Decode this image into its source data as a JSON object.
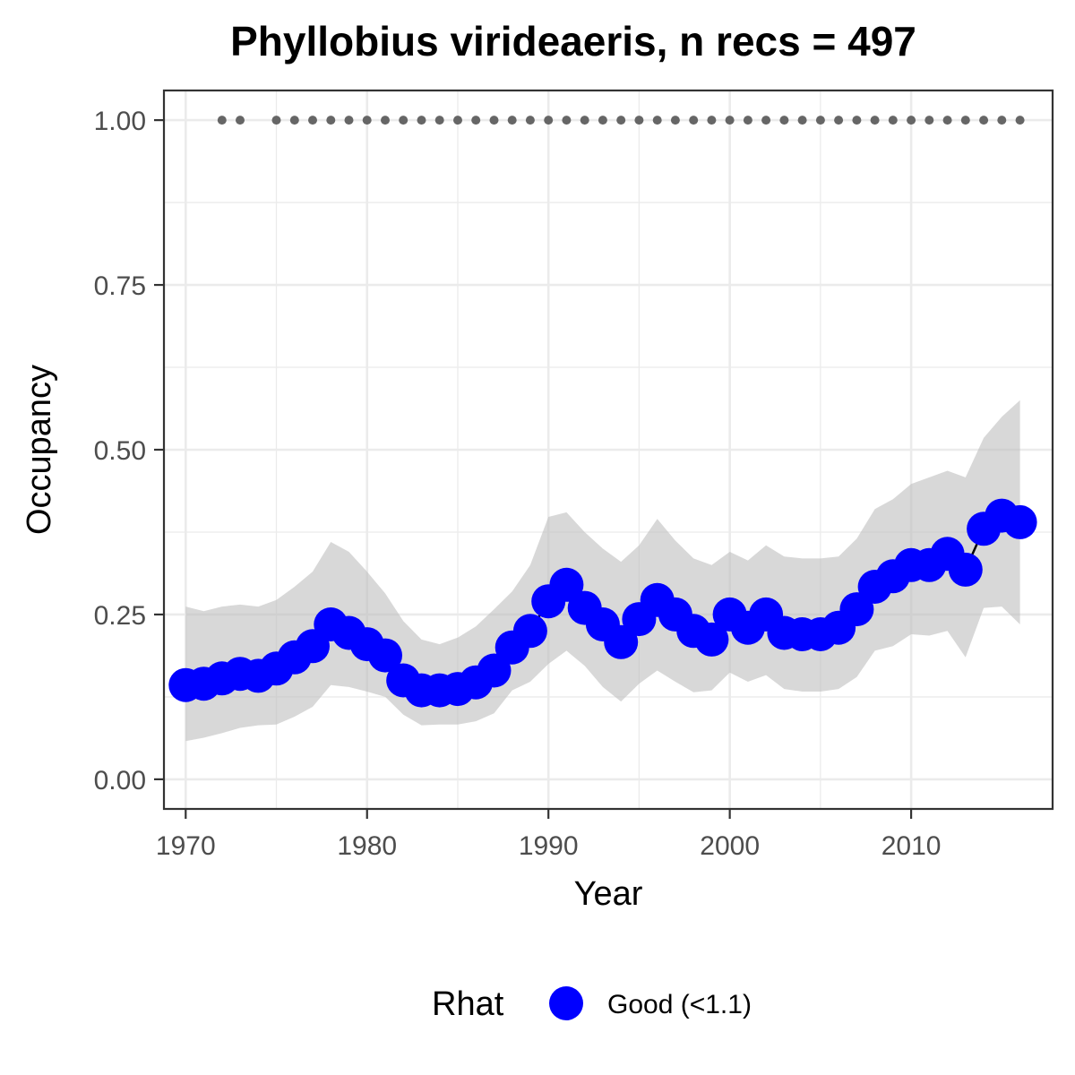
{
  "chart_data": {
    "type": "line",
    "title": "Phyllobius virideaeris, n recs = 497",
    "xlabel": "Year",
    "ylabel": "Occupancy",
    "xlim": [
      1968.8,
      2017.8
    ],
    "ylim": [
      -0.045,
      1.045
    ],
    "x_ticks": [
      1970,
      1980,
      1990,
      2000,
      2010
    ],
    "x_tick_labels": [
      "1970",
      "1980",
      "1990",
      "2000",
      "2010"
    ],
    "y_ticks": [
      0,
      0.25,
      0.5,
      0.75,
      1.0
    ],
    "y_tick_labels": [
      "0.00",
      "0.25",
      "0.50",
      "0.75",
      "1.00"
    ],
    "grid": true,
    "colors": {
      "point": "#0000ff",
      "ribbon": "#bebebe",
      "line": "#000000",
      "record_dots": "#666666",
      "grid": "#ebebeb",
      "border": "#333333"
    },
    "series": [
      {
        "name": "Good (<1.1)",
        "x": [
          1970,
          1971,
          1972,
          1973,
          1974,
          1975,
          1976,
          1977,
          1978,
          1979,
          1980,
          1981,
          1982,
          1983,
          1984,
          1985,
          1986,
          1987,
          1988,
          1989,
          1990,
          1991,
          1992,
          1993,
          1994,
          1995,
          1996,
          1997,
          1998,
          1999,
          2000,
          2001,
          2002,
          2003,
          2004,
          2005,
          2006,
          2007,
          2008,
          2009,
          2010,
          2011,
          2012,
          2013,
          2014,
          2015,
          2016
        ],
        "mean": [
          0.143,
          0.145,
          0.153,
          0.16,
          0.157,
          0.168,
          0.185,
          0.202,
          0.235,
          0.222,
          0.205,
          0.188,
          0.15,
          0.135,
          0.135,
          0.137,
          0.147,
          0.165,
          0.2,
          0.225,
          0.27,
          0.295,
          0.26,
          0.235,
          0.208,
          0.243,
          0.272,
          0.25,
          0.225,
          0.212,
          0.25,
          0.23,
          0.25,
          0.222,
          0.22,
          0.22,
          0.23,
          0.258,
          0.292,
          0.308,
          0.325,
          0.325,
          0.342,
          0.318,
          0.38,
          0.4,
          0.39
        ],
        "lower": [
          0.058,
          0.063,
          0.07,
          0.078,
          0.082,
          0.083,
          0.095,
          0.11,
          0.143,
          0.14,
          0.133,
          0.125,
          0.098,
          0.082,
          0.083,
          0.083,
          0.088,
          0.1,
          0.135,
          0.148,
          0.175,
          0.195,
          0.172,
          0.14,
          0.118,
          0.145,
          0.165,
          0.148,
          0.132,
          0.135,
          0.162,
          0.148,
          0.158,
          0.137,
          0.133,
          0.133,
          0.137,
          0.155,
          0.195,
          0.202,
          0.22,
          0.218,
          0.225,
          0.185,
          0.26,
          0.262,
          0.235
        ],
        "upper": [
          0.262,
          0.255,
          0.262,
          0.265,
          0.262,
          0.272,
          0.292,
          0.315,
          0.36,
          0.345,
          0.315,
          0.282,
          0.24,
          0.212,
          0.205,
          0.215,
          0.232,
          0.258,
          0.285,
          0.325,
          0.398,
          0.405,
          0.375,
          0.35,
          0.33,
          0.355,
          0.395,
          0.362,
          0.335,
          0.325,
          0.345,
          0.332,
          0.355,
          0.338,
          0.335,
          0.335,
          0.338,
          0.365,
          0.41,
          0.425,
          0.448,
          0.458,
          0.468,
          0.458,
          0.518,
          0.55,
          0.575
        ]
      }
    ],
    "record_years": [
      1972,
      1973,
      1975,
      1976,
      1977,
      1978,
      1979,
      1980,
      1981,
      1982,
      1983,
      1984,
      1985,
      1986,
      1987,
      1988,
      1989,
      1990,
      1991,
      1992,
      1993,
      1994,
      1995,
      1996,
      1997,
      1998,
      1999,
      2000,
      2001,
      2002,
      2003,
      2004,
      2005,
      2006,
      2007,
      2008,
      2009,
      2010,
      2011,
      2012,
      2013,
      2014,
      2015,
      2016
    ],
    "record_value": 1.0,
    "legend": {
      "title": "Rhat",
      "label": "Good (<1.1)",
      "position": "bottom"
    }
  }
}
